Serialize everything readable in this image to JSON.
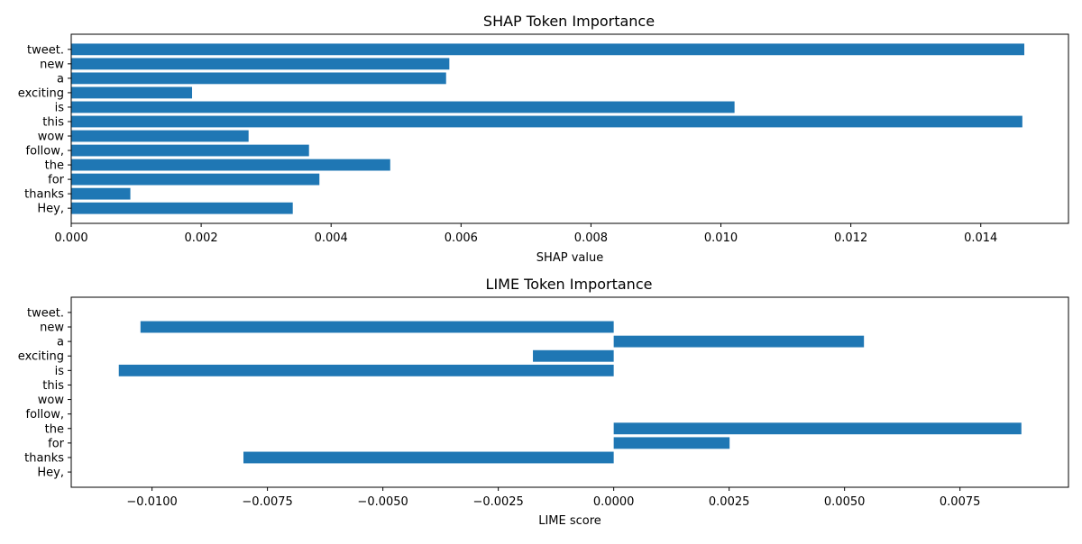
{
  "chart_data": [
    {
      "type": "bar",
      "orientation": "horizontal",
      "title": "SHAP Token Importance",
      "xlabel": "SHAP value",
      "ylabel": "",
      "xlim": [
        0,
        0.01535
      ],
      "xticks": [
        0.0,
        0.002,
        0.004,
        0.006,
        0.008,
        0.01,
        0.012,
        0.014
      ],
      "xtick_labels": [
        "0.000",
        "0.002",
        "0.004",
        "0.006",
        "0.008",
        "0.010",
        "0.012",
        "0.014"
      ],
      "categories": [
        "Hey,",
        "thanks",
        "for",
        "the",
        "follow,",
        "wow",
        "this",
        "is",
        "exciting",
        "a",
        "new",
        "tweet."
      ],
      "values": [
        0.00341,
        0.00091,
        0.00382,
        0.00491,
        0.00366,
        0.00273,
        0.01464,
        0.01021,
        0.00186,
        0.00577,
        0.00582,
        0.01467
      ],
      "color": "#1f77b4",
      "grid": false
    },
    {
      "type": "bar",
      "orientation": "horizontal",
      "title": "LIME Token Importance",
      "xlabel": "LIME score",
      "ylabel": "",
      "xlim": [
        -0.01175,
        0.00985
      ],
      "xticks": [
        -0.01,
        -0.0075,
        -0.005,
        -0.0025,
        0.0,
        0.0025,
        0.005,
        0.0075
      ],
      "xtick_labels": [
        "−0.0100",
        "−0.0075",
        "−0.0050",
        "−0.0025",
        "0.0000",
        "0.0025",
        "0.0050",
        "0.0075"
      ],
      "categories": [
        "Hey,",
        "thanks",
        "for",
        "the",
        "follow,",
        "wow",
        "this",
        "is",
        "exciting",
        "a",
        "new",
        "tweet."
      ],
      "values": [
        0,
        -0.00802,
        0.00251,
        0.00883,
        0,
        0,
        0,
        -0.01072,
        -0.00175,
        0.00542,
        -0.01025,
        0
      ],
      "color": "#1f77b4",
      "grid": false
    }
  ]
}
